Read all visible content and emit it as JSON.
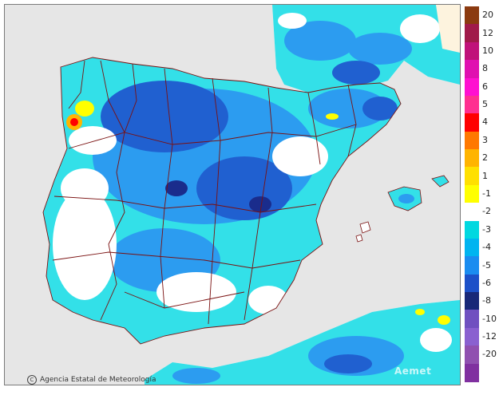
{
  "credit": "Agencia Estatal de Meteorología",
  "credit_icon": "copyright-icon",
  "watermark": "Aemet",
  "legend": {
    "labels": [
      "20",
      "12",
      "10",
      "8",
      "6",
      "5",
      "4",
      "3",
      "2",
      "1",
      "-1",
      "-2",
      "-3",
      "-4",
      "-5",
      "-6",
      "-8",
      "-10",
      "-12",
      "-20"
    ],
    "colors": [
      "#8b3a10",
      "#a01a4a",
      "#c0127a",
      "#e010b0",
      "#ff10d0",
      "#ff3090",
      "#ff0000",
      "#ff7800",
      "#ffb400",
      "#ffe000",
      "#ffff00",
      "#ffffff",
      "#00d8e0",
      "#00b4f0",
      "#1a8cf0",
      "#1c50c8",
      "#182878",
      "#7050c0",
      "#8a60d0",
      "#9050b0",
      "#8030a0"
    ]
  },
  "colors": {
    "ocean": "#e6e6e6",
    "land": "#ffffff",
    "cyan": "#33e0e8",
    "light_blue": "#2c9cf0",
    "blue": "#2060d0",
    "dark_blue": "#1a2c8c",
    "border": "#7a1010"
  }
}
